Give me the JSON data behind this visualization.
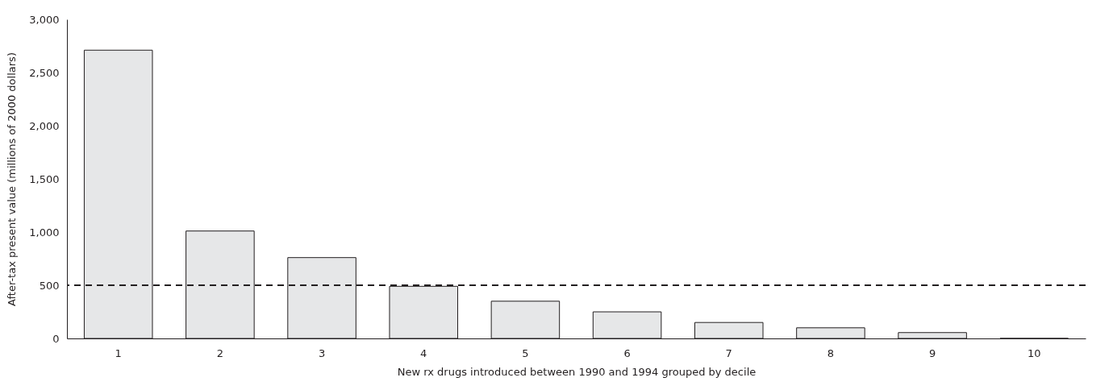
{
  "chart_data": {
    "type": "bar",
    "xlabel": "New rx drugs introduced between 1990 and 1994 grouped by decile",
    "ylabel": "After-tax present value (millions of 2000 dollars)",
    "categories": [
      "1",
      "2",
      "3",
      "4",
      "5",
      "6",
      "7",
      "8",
      "9",
      "10"
    ],
    "values": [
      2710,
      1010,
      760,
      490,
      350,
      250,
      150,
      100,
      55,
      0
    ],
    "color": "#e6e7e8",
    "ylim": [
      0,
      3000
    ],
    "yticks": [
      {
        "value": 0,
        "label": "0"
      },
      {
        "value": 500,
        "label": "500"
      },
      {
        "value": 1000,
        "label": "1,000"
      },
      {
        "value": 1500,
        "label": "1,500"
      },
      {
        "value": 2000,
        "label": "2,000"
      },
      {
        "value": 2500,
        "label": "2,500"
      },
      {
        "value": 3000,
        "label": "3,000"
      }
    ],
    "ref_lines": [
      {
        "axis": "y",
        "value": 500,
        "label": null,
        "color": "#231f20",
        "line_style": "dashed"
      }
    ],
    "grid": false
  }
}
